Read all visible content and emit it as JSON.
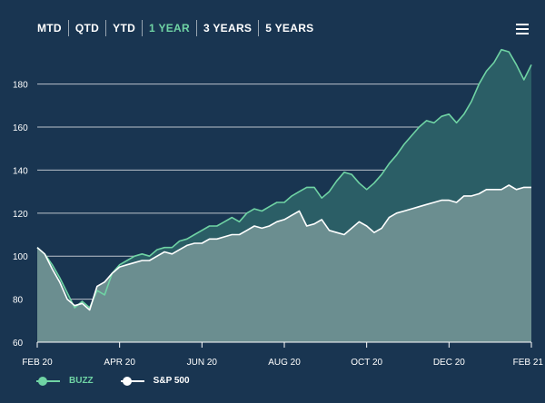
{
  "range_selector": {
    "buttons": [
      "MTD",
      "QTD",
      "YTD",
      "1 YEAR",
      "3 YEARS",
      "5 YEARS"
    ],
    "active": "1 YEAR"
  },
  "menu": {
    "icon": "hamburger-menu-icon"
  },
  "colors": {
    "background": "#193551",
    "buzz": "#6fd3a4",
    "sp500": "#ffffff",
    "buzz_area": "#2b5e66",
    "sp500_area": "#6b8e90"
  },
  "chart_data": {
    "type": "area",
    "x_tick_labels": [
      "FEB 20",
      "APR 20",
      "JUN 20",
      "AUG 20",
      "OCT 20",
      "DEC 20",
      "FEB 21"
    ],
    "y_ticks": [
      60,
      80,
      100,
      120,
      140,
      160,
      180
    ],
    "ylim": [
      60,
      198
    ],
    "grid": true,
    "legend_position": "bottom-left",
    "series": [
      {
        "name": "BUZZ",
        "color": "#6fd3a4",
        "values": [
          104,
          101,
          96,
          90,
          83,
          76,
          79,
          76,
          84,
          82,
          92,
          96,
          98,
          100,
          101,
          100,
          103,
          104,
          104,
          107,
          108,
          110,
          112,
          114,
          114,
          116,
          118,
          116,
          120,
          122,
          121,
          123,
          125,
          125,
          128,
          130,
          132,
          132,
          127,
          130,
          135,
          139,
          138,
          134,
          131,
          134,
          138,
          143,
          147,
          152,
          156,
          160,
          163,
          162,
          165,
          166,
          162,
          166,
          172,
          180,
          186,
          190,
          196,
          195,
          189,
          182,
          189
        ]
      },
      {
        "name": "S&P 500",
        "color": "#ffffff",
        "values": [
          104,
          101,
          94,
          88,
          80,
          77,
          78,
          75,
          86,
          88,
          92,
          95,
          96,
          97,
          98,
          98,
          100,
          102,
          101,
          103,
          105,
          106,
          106,
          108,
          108,
          109,
          110,
          110,
          112,
          114,
          113,
          114,
          116,
          117,
          119,
          121,
          114,
          115,
          117,
          112,
          111,
          110,
          113,
          116,
          114,
          111,
          113,
          118,
          120,
          121,
          122,
          123,
          124,
          125,
          126,
          126,
          125,
          128,
          128,
          129,
          131,
          131,
          131,
          133,
          131,
          132,
          132
        ]
      }
    ]
  }
}
